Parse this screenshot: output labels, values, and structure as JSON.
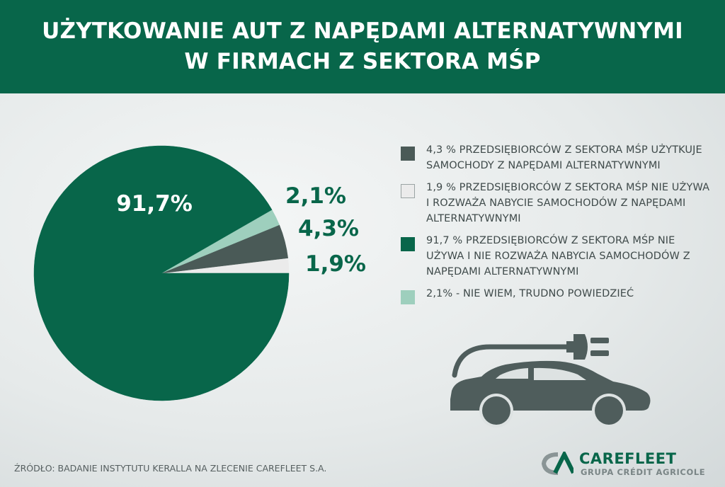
{
  "header": {
    "title_line1": "UŻYTKOWANIE AUT Z NAPĘDAMI ALTERNATYWNYMI",
    "title_line2": "W FIRMACH Z SEKTORA MŚP"
  },
  "chart_data": {
    "type": "pie",
    "slices": [
      {
        "label": "1,9%",
        "value": 1.9,
        "color": "#ebebeb"
      },
      {
        "label": "4,3%",
        "value": 4.3,
        "color": "#4a5a57"
      },
      {
        "label": "2,1%",
        "value": 2.1,
        "color": "#9ecfbd"
      },
      {
        "label": "91,7%",
        "value": 91.7,
        "color": "#08664a"
      }
    ],
    "label_colors": {
      "inside": "#ffffff",
      "outside": "#08664a"
    },
    "legend": [
      {
        "text": "4,3 % przedsiębiorców z sektora MŚP użytkuje samochody z napędami alternatywnymi",
        "color": "#4a5a57"
      },
      {
        "text": "1,9 % przedsiębiorców z sektora MŚP nie używa i rozważa nabycie samochodów z napędami alternatywnymi",
        "color": "#ebebeb"
      },
      {
        "text": "91,7 % przedsiębiorców z sektora MŚP nie używa i nie rozważa nabycia samochodów z napędami alternatywnymi",
        "color": "#08664a"
      },
      {
        "text": "2,1% - nie wiem, trudno powiedzieć",
        "color": "#9ecfbd"
      }
    ],
    "legend_placement": "right"
  },
  "icons": {
    "car": "electric-car-icon",
    "plug": "plug-icon",
    "logo_mark": "credit-agricole-logo-icon"
  },
  "colors": {
    "brand_green": "#08664a",
    "car_gray": "#4f5d5c"
  },
  "footer": {
    "source": "ŹRÓDŁO: BADANIE INSTYTUTU KERALLA NA ZLECENIE CAREFLEET S.A.",
    "logo_name": "CAREFLEET",
    "logo_subtitle": "GRUPA CRÉDIT AGRICOLE"
  }
}
